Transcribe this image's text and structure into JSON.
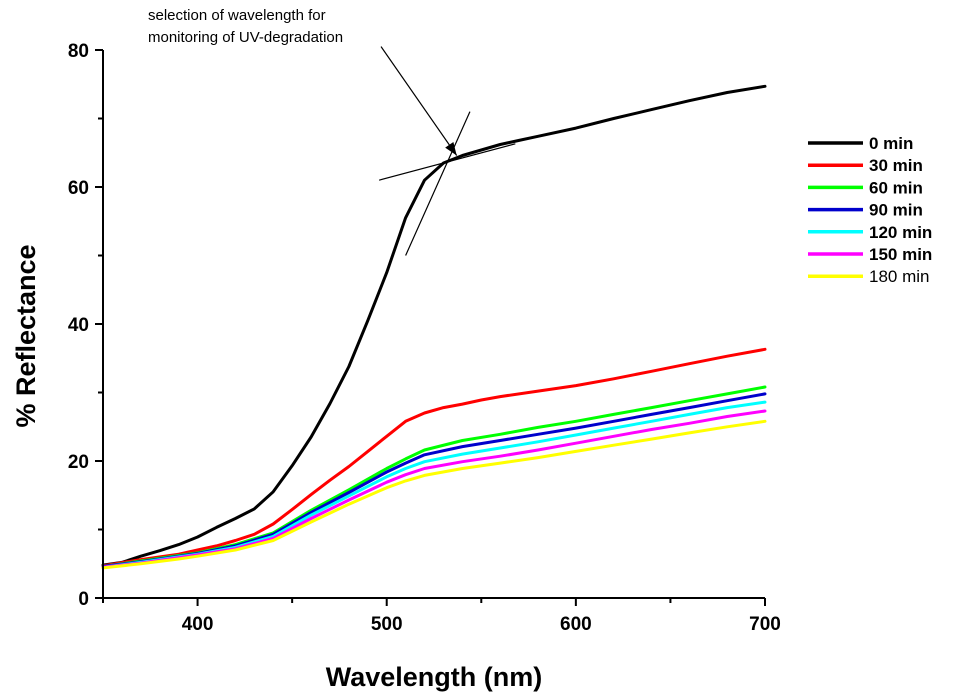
{
  "chart_data": {
    "type": "line",
    "title": "",
    "xlabel": "Wavelength (nm)",
    "ylabel": "% Reflectance",
    "xlim": [
      350,
      700
    ],
    "ylim": [
      0,
      80
    ],
    "x_ticks": [
      400,
      500,
      600,
      700
    ],
    "x_tick_labels": [
      "400",
      "500",
      "600",
      "700"
    ],
    "y_ticks": [
      0,
      20,
      40,
      60,
      80
    ],
    "y_tick_labels": [
      "0",
      "20",
      "40",
      "60",
      "80"
    ],
    "grid": false,
    "legend_position": "right",
    "annotation": {
      "lines": [
        "selection of wavelength for",
        "monitoring of UV-degradation"
      ],
      "arrow_from": [
        497,
        80.5
      ],
      "arrow_to": [
        537,
        64.6
      ],
      "tangent_lines": [
        {
          "x": [
            496,
            568
          ],
          "y": [
            61.0,
            66.3
          ]
        },
        {
          "x": [
            510,
            544
          ],
          "y": [
            50.0,
            71.0
          ]
        }
      ]
    },
    "series": [
      {
        "name": "0 min",
        "color": "#000000",
        "bold": true,
        "x": [
          350,
          360,
          370,
          380,
          390,
          400,
          410,
          420,
          430,
          440,
          450,
          460,
          470,
          480,
          490,
          500,
          510,
          520,
          530,
          540,
          550,
          560,
          570,
          580,
          600,
          620,
          640,
          660,
          680,
          700
        ],
        "y": [
          4.8,
          5.2,
          6.1,
          6.9,
          7.8,
          8.9,
          10.3,
          11.6,
          13.0,
          15.5,
          19.3,
          23.5,
          28.4,
          33.8,
          40.5,
          47.5,
          55.5,
          61.0,
          63.5,
          64.6,
          65.4,
          66.2,
          66.8,
          67.4,
          68.6,
          70.0,
          71.3,
          72.6,
          73.8,
          74.7
        ]
      },
      {
        "name": "30 min",
        "color": "#ff0000",
        "bold": true,
        "x": [
          350,
          370,
          390,
          400,
          410,
          420,
          430,
          440,
          450,
          460,
          470,
          480,
          490,
          500,
          510,
          520,
          530,
          540,
          550,
          560,
          580,
          600,
          620,
          640,
          660,
          680,
          700
        ],
        "y": [
          4.7,
          5.6,
          6.4,
          7.0,
          7.6,
          8.4,
          9.3,
          10.8,
          12.9,
          15.1,
          17.2,
          19.2,
          21.4,
          23.6,
          25.8,
          27.0,
          27.8,
          28.3,
          28.9,
          29.4,
          30.2,
          31.0,
          32.0,
          33.1,
          34.2,
          35.3,
          36.3
        ]
      },
      {
        "name": "60 min",
        "color": "#00ff00",
        "bold": true,
        "x": [
          350,
          370,
          390,
          400,
          420,
          440,
          460,
          480,
          500,
          510,
          520,
          540,
          560,
          580,
          600,
          620,
          640,
          660,
          680,
          700
        ],
        "y": [
          4.6,
          5.4,
          6.2,
          6.6,
          7.8,
          9.5,
          12.8,
          15.8,
          18.9,
          20.3,
          21.6,
          23.0,
          23.9,
          24.9,
          25.8,
          26.8,
          27.8,
          28.8,
          29.8,
          30.8
        ]
      },
      {
        "name": "90 min",
        "color": "#0000cc",
        "bold": true,
        "x": [
          350,
          370,
          390,
          400,
          420,
          440,
          460,
          480,
          500,
          510,
          520,
          540,
          560,
          580,
          600,
          620,
          640,
          660,
          680,
          700
        ],
        "y": [
          4.6,
          5.3,
          6.1,
          6.5,
          7.6,
          9.3,
          12.5,
          15.4,
          18.4,
          19.7,
          20.9,
          22.1,
          23.0,
          23.9,
          24.8,
          25.8,
          26.8,
          27.8,
          28.8,
          29.8
        ]
      },
      {
        "name": "120 min",
        "color": "#00ffff",
        "bold": true,
        "x": [
          350,
          370,
          390,
          400,
          420,
          440,
          460,
          480,
          500,
          510,
          520,
          540,
          560,
          580,
          600,
          620,
          640,
          660,
          680,
          700
        ],
        "y": [
          4.5,
          5.2,
          6.0,
          6.4,
          7.4,
          9.0,
          12.1,
          14.9,
          17.7,
          18.9,
          19.9,
          21.0,
          21.9,
          22.8,
          23.8,
          24.8,
          25.8,
          26.8,
          27.8,
          28.6
        ]
      },
      {
        "name": "150 min",
        "color": "#ff00ff",
        "bold": true,
        "x": [
          350,
          370,
          390,
          400,
          420,
          440,
          460,
          480,
          500,
          510,
          520,
          540,
          560,
          580,
          600,
          620,
          640,
          660,
          680,
          700
        ],
        "y": [
          4.5,
          5.1,
          5.9,
          6.3,
          7.2,
          8.7,
          11.6,
          14.3,
          16.9,
          18.0,
          18.9,
          19.9,
          20.7,
          21.6,
          22.6,
          23.6,
          24.6,
          25.5,
          26.5,
          27.3
        ]
      },
      {
        "name": "180 min",
        "color": "#ffff00",
        "bold": false,
        "x": [
          350,
          370,
          390,
          400,
          420,
          440,
          460,
          480,
          500,
          510,
          520,
          540,
          560,
          580,
          600,
          620,
          640,
          660,
          680,
          700
        ],
        "y": [
          4.4,
          5.0,
          5.7,
          6.1,
          7.0,
          8.4,
          11.1,
          13.7,
          16.1,
          17.1,
          17.9,
          18.9,
          19.7,
          20.5,
          21.4,
          22.3,
          23.2,
          24.1,
          25.0,
          25.8
        ]
      }
    ]
  }
}
